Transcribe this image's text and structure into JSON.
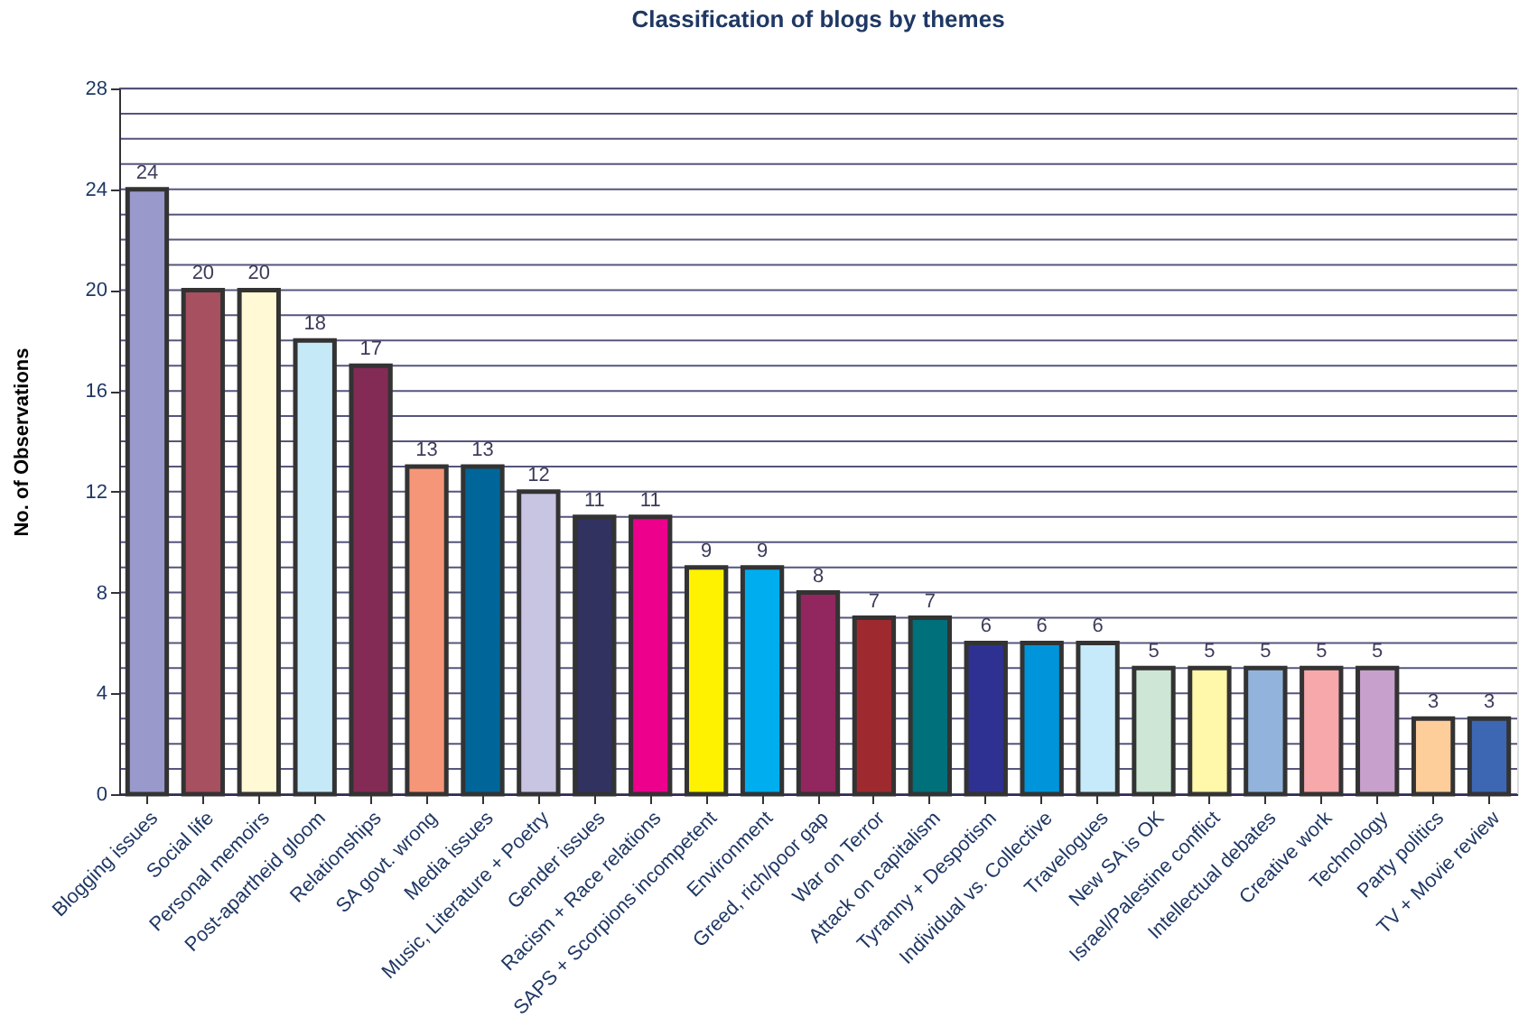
{
  "chart_data": {
    "type": "bar",
    "title": "Classification of blogs by themes",
    "ylabel": "No. of Observations",
    "categories": [
      "Blogging issues",
      "Social life",
      "Personal memoirs",
      "Post-apartheid gloom",
      "Relationships",
      "SA govt. wrong",
      "Media issues",
      "Music, Literature + Poetry",
      "Gender issues",
      "Racism + Race relations",
      "SAPS + Scorpions incompetent",
      "Environment",
      "Greed, rich/poor gap",
      "War on Terror",
      "Attack on capitalism",
      "Tyranny + Despotism",
      "Individual vs. Collective",
      "Travelogues",
      "New SA is OK",
      "Israel/Palestine conflict",
      "Intellectual debates",
      "Creative work",
      "Technology",
      "Party politics",
      "TV + Movie review"
    ],
    "values": [
      24,
      20,
      20,
      18,
      17,
      13,
      13,
      12,
      11,
      11,
      9,
      9,
      8,
      7,
      7,
      6,
      6,
      6,
      5,
      5,
      5,
      5,
      5,
      3,
      3
    ],
    "colors": [
      "#9999cc",
      "#a65060",
      "#fff9d6",
      "#c6e9f8",
      "#832a55",
      "#f69679",
      "#006699",
      "#c8c5e3",
      "#313260",
      "#ec008c",
      "#fff200",
      "#00aeef",
      "#92275f",
      "#9e2a2f",
      "#00707a",
      "#2e3192",
      "#0095da",
      "#c7eafa",
      "#cde6d5",
      "#fff7aa",
      "#92b4dc",
      "#f6a8ab",
      "#c7a0cb",
      "#fdce9a",
      "#3d67b2"
    ],
    "ylim": [
      0,
      28
    ],
    "yticks": [
      0,
      {
        "value": 1,
        "label": null
      },
      {
        "value": 2,
        "label": null
      },
      {
        "value": 3,
        "label": null
      },
      4,
      {
        "value": 5,
        "label": null
      },
      {
        "value": 6,
        "label": null
      },
      {
        "value": 7,
        "label": null
      },
      8,
      {
        "value": 9,
        "label": null
      },
      {
        "value": 10,
        "label": null
      },
      {
        "value": 11,
        "label": null
      },
      12,
      {
        "value": 13,
        "label": null
      },
      {
        "value": 14,
        "label": null
      },
      {
        "value": 15,
        "label": null
      },
      16,
      {
        "value": 17,
        "label": null
      },
      {
        "value": 18,
        "label": null
      },
      {
        "value": 19,
        "label": null
      },
      20,
      {
        "value": 21,
        "label": null
      },
      {
        "value": 22,
        "label": null
      },
      {
        "value": 23,
        "label": null
      },
      24,
      {
        "value": 25,
        "label": null
      },
      {
        "value": 26,
        "label": null
      },
      {
        "value": 27,
        "label": null
      },
      28
    ],
    "grid": "y",
    "data_labels": true
  }
}
